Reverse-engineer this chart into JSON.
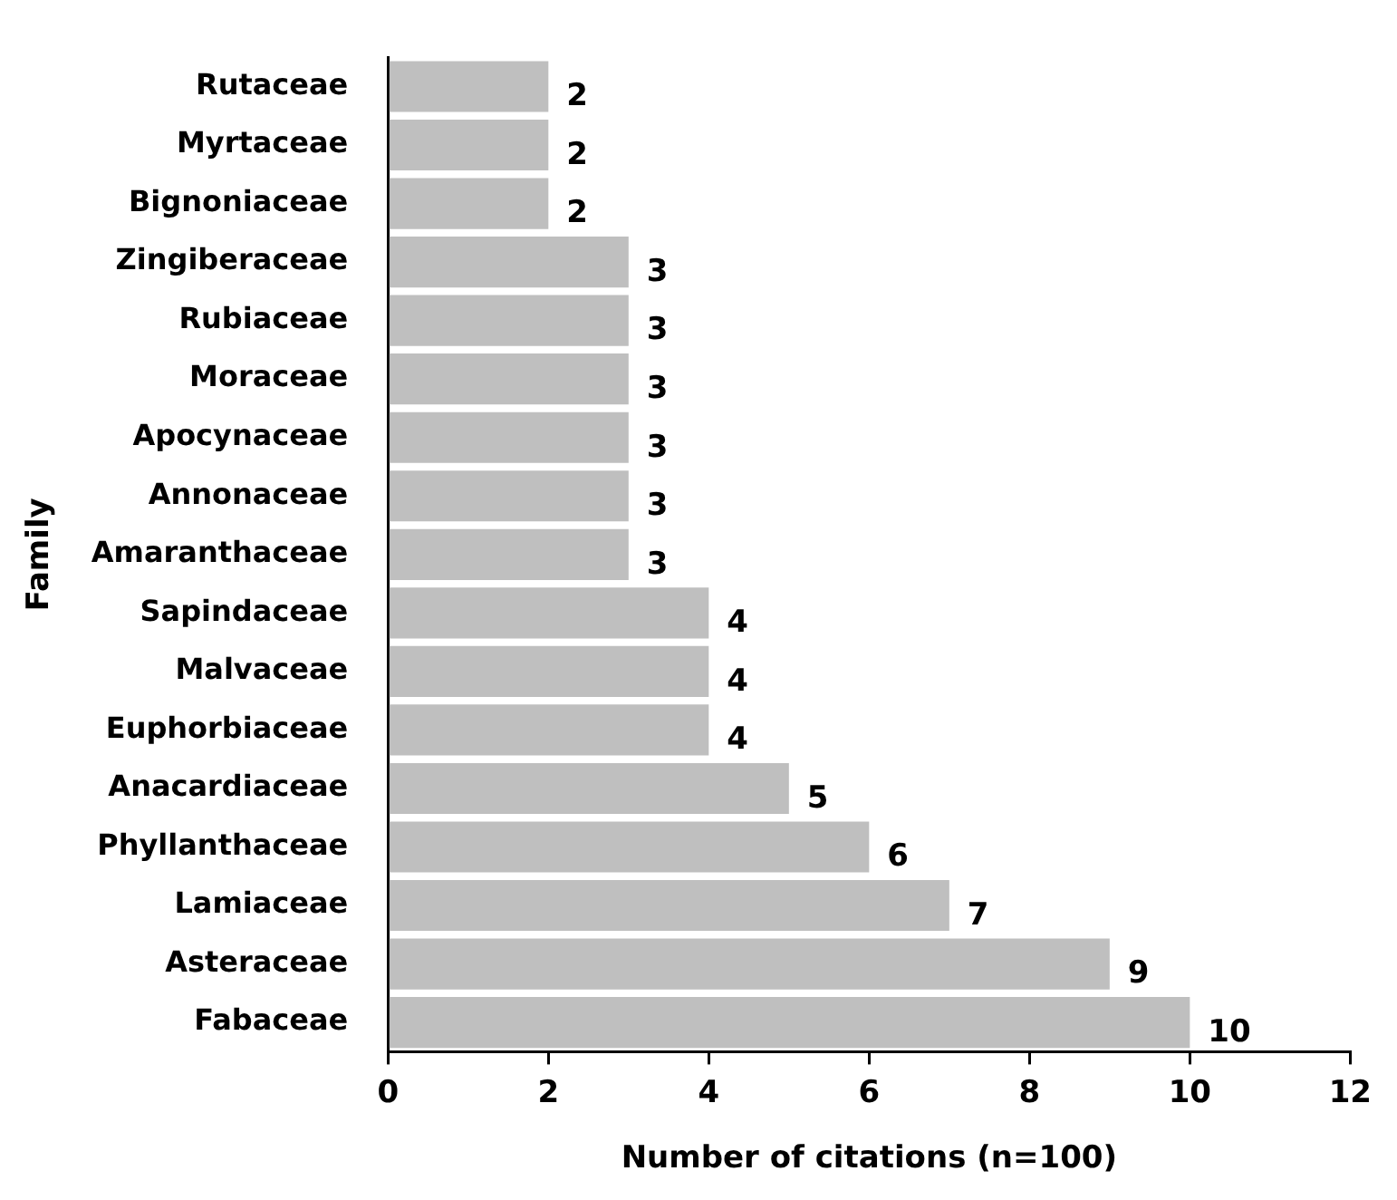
{
  "chart_data": {
    "type": "bar",
    "orientation": "horizontal",
    "xlabel": "Number of citations (n=100)",
    "ylabel": "Family",
    "categories": [
      "Rutaceae",
      "Myrtaceae",
      "Bignoniaceae",
      "Zingiberaceae",
      "Rubiaceae",
      "Moraceae",
      "Apocynaceae",
      "Annonaceae",
      "Amaranthaceae",
      "Sapindaceae",
      "Malvaceae",
      "Euphorbiaceae",
      "Anacardiaceae",
      "Phyllanthaceae",
      "Lamiaceae",
      "Asteraceae",
      "Fabaceae"
    ],
    "values": [
      2,
      2,
      2,
      3,
      3,
      3,
      3,
      3,
      3,
      4,
      4,
      4,
      5,
      6,
      7,
      9,
      10
    ],
    "color": "#bfbfbf",
    "xlim": [
      0,
      12
    ],
    "xticks": [
      0,
      2,
      4,
      6,
      8,
      10,
      12
    ],
    "data_labels": true,
    "grid": false,
    "legend": false
  }
}
